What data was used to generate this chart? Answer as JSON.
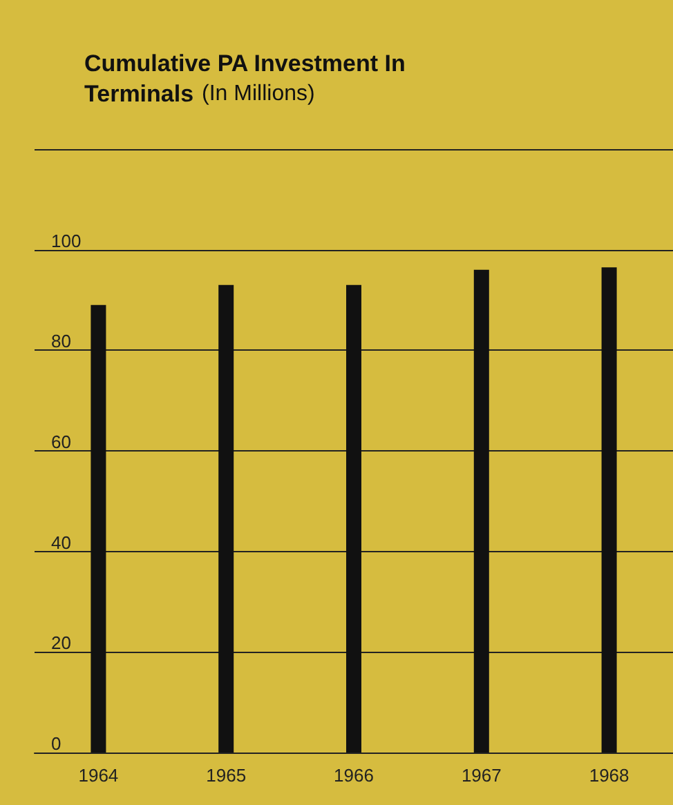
{
  "chart_data": {
    "type": "bar",
    "title": "Cumulative PA Investment In Terminals",
    "subtitle": "(In Millions)",
    "categories": [
      "1964",
      "1965",
      "1966",
      "1967",
      "1968"
    ],
    "values": [
      89,
      93,
      93,
      96,
      96.5
    ],
    "color": "#111111",
    "ylim": [
      0,
      120
    ],
    "yticks": [
      0,
      20,
      40,
      60,
      80,
      100,
      {
        "value": 120,
        "label": null
      }
    ],
    "grid": "y"
  }
}
